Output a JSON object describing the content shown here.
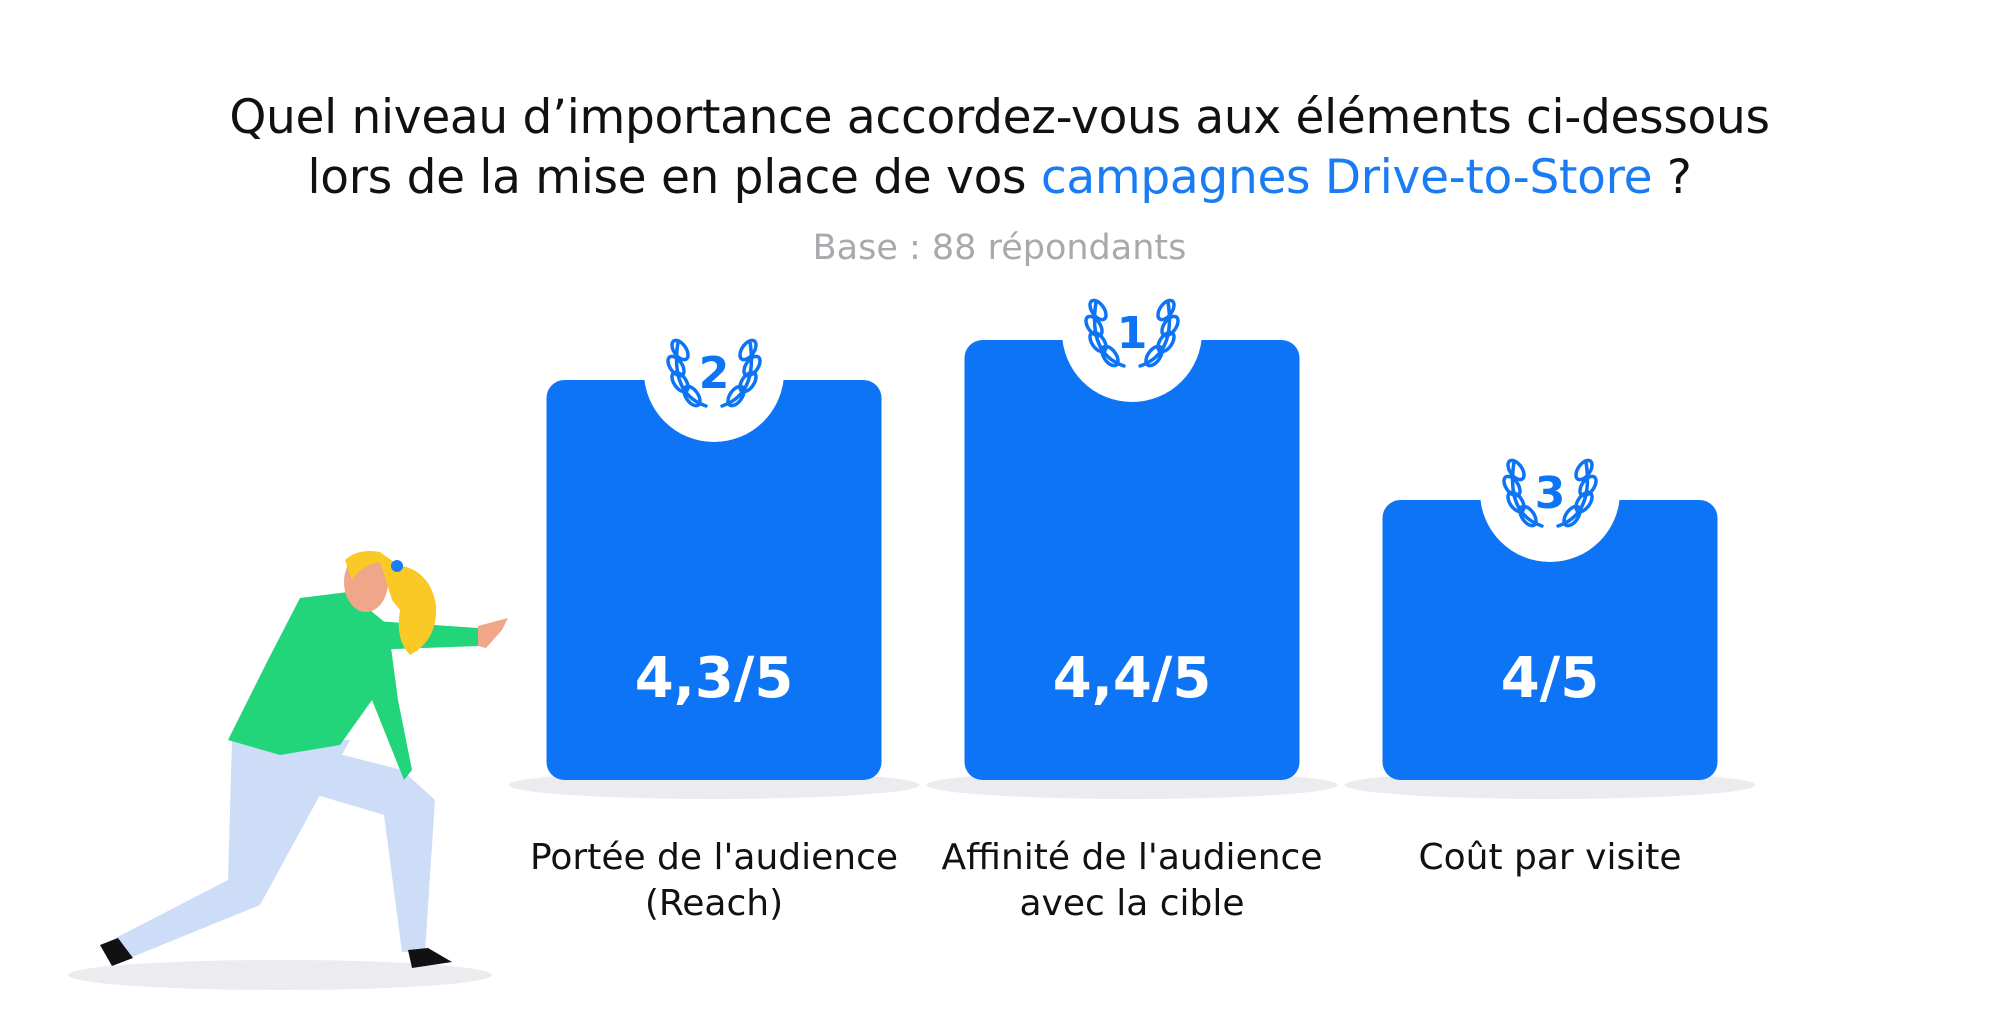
{
  "header": {
    "title_line1": "Quel niveau d’importance accordez-vous aux éléments ci-dessous",
    "title_line2_prefix": "lors de la mise en place de vos ",
    "title_line2_accent": "campagnes Drive-to-Store",
    "title_line2_suffix": " ?",
    "base": "Base : 88 répondants"
  },
  "colors": {
    "bar": "#0d74f5",
    "accent_text": "#1a7cf4",
    "badge_bg": "#ffffff",
    "shadow": "#ececf0",
    "value_text": "#ffffff"
  },
  "chart_data": {
    "type": "bar",
    "categories": [
      "Portée de l'audience (Reach)",
      "Affinité de l'audience avec la cible",
      "Coût par visite"
    ],
    "category_lines": [
      [
        "Portée de l'audience",
        "(Reach)"
      ],
      [
        "Affinité de l'audience",
        "avec la cible"
      ],
      [
        "Coût par visite"
      ]
    ],
    "values": [
      4.3,
      4.4,
      4.0
    ],
    "value_labels": [
      "4,3/5",
      "4,4/5",
      "4/5"
    ],
    "ranks": [
      "2",
      "1",
      "3"
    ],
    "ylim": [
      0,
      5
    ]
  },
  "illustration": {
    "icon": "woman-pointing-illustration"
  }
}
